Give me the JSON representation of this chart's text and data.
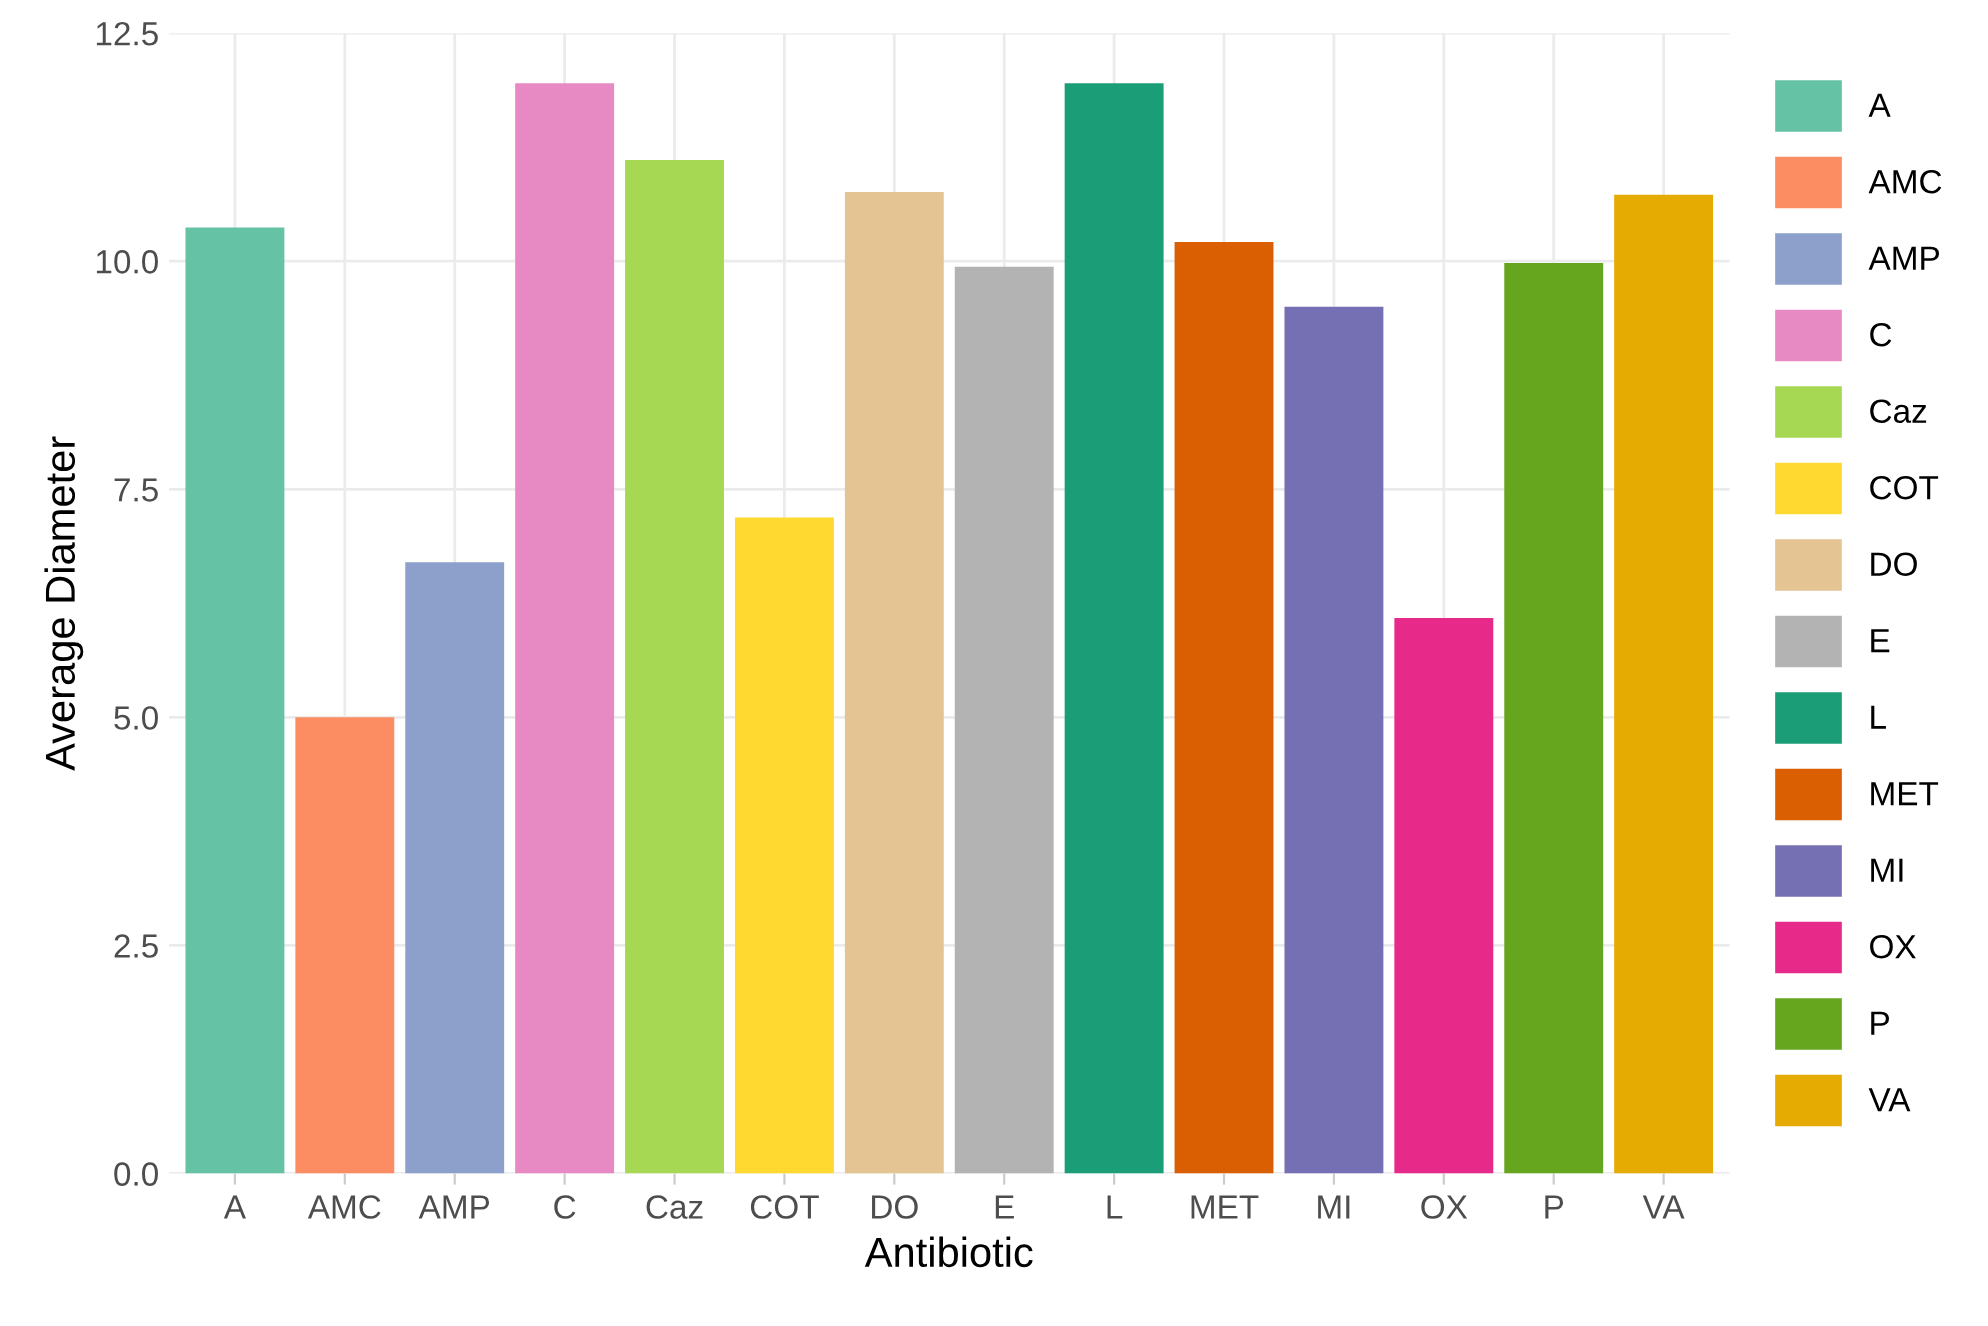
{
  "chart_data": {
    "type": "bar",
    "xlabel": "Antibiotic",
    "ylabel": "Average Diameter",
    "categories": [
      "A",
      "AMC",
      "AMP",
      "C",
      "Caz",
      "COT",
      "DO",
      "E",
      "L",
      "MET",
      "MI",
      "OX",
      "P",
      "VA"
    ],
    "series": [
      {
        "name": "A",
        "color": "#66c2a5",
        "values": [
          10.37,
          null,
          null,
          null,
          null,
          null,
          null,
          null,
          null,
          null,
          null,
          null,
          null,
          null
        ]
      },
      {
        "name": "AMC",
        "color": "#fc8d62",
        "values": [
          null,
          5.0,
          null,
          null,
          null,
          null,
          null,
          null,
          null,
          null,
          null,
          null,
          null,
          null
        ]
      },
      {
        "name": "AMP",
        "color": "#8da0cb",
        "values": [
          null,
          null,
          6.7,
          null,
          null,
          null,
          null,
          null,
          null,
          null,
          null,
          null,
          null,
          null
        ]
      },
      {
        "name": "C",
        "color": "#e78ac3",
        "values": [
          null,
          null,
          null,
          11.95,
          null,
          null,
          null,
          null,
          null,
          null,
          null,
          null,
          null,
          null
        ]
      },
      {
        "name": "Caz",
        "color": "#a6d854",
        "values": [
          null,
          null,
          null,
          null,
          11.11,
          null,
          null,
          null,
          null,
          null,
          null,
          null,
          null,
          null
        ]
      },
      {
        "name": "COT",
        "color": "#ffd92f",
        "values": [
          null,
          null,
          null,
          null,
          null,
          7.19,
          null,
          null,
          null,
          null,
          null,
          null,
          null,
          null
        ]
      },
      {
        "name": "DO",
        "color": "#e5c494",
        "values": [
          null,
          null,
          null,
          null,
          null,
          null,
          10.76,
          null,
          null,
          null,
          null,
          null,
          null,
          null
        ]
      },
      {
        "name": "E",
        "color": "#b3b3b3",
        "values": [
          null,
          null,
          null,
          null,
          null,
          null,
          null,
          9.94,
          null,
          null,
          null,
          null,
          null,
          null
        ]
      },
      {
        "name": "L",
        "color": "#1b9e77",
        "values": [
          null,
          null,
          null,
          null,
          null,
          null,
          null,
          null,
          11.95,
          null,
          null,
          null,
          null,
          null
        ]
      },
      {
        "name": "MET",
        "color": "#d95f02",
        "values": [
          null,
          null,
          null,
          null,
          null,
          null,
          null,
          null,
          null,
          10.21,
          null,
          null,
          null,
          null
        ]
      },
      {
        "name": "MI",
        "color": "#7570b3",
        "values": [
          null,
          null,
          null,
          null,
          null,
          null,
          null,
          null,
          null,
          null,
          9.5,
          null,
          null,
          null
        ]
      },
      {
        "name": "OX",
        "color": "#e7298a",
        "values": [
          null,
          null,
          null,
          null,
          null,
          null,
          null,
          null,
          null,
          null,
          null,
          6.09,
          null,
          null
        ]
      },
      {
        "name": "P",
        "color": "#66a61e",
        "values": [
          null,
          null,
          null,
          null,
          null,
          null,
          null,
          null,
          null,
          null,
          null,
          null,
          9.98,
          null
        ]
      },
      {
        "name": "VA",
        "color": "#e6ab02",
        "values": [
          null,
          null,
          null,
          null,
          null,
          null,
          null,
          null,
          null,
          null,
          null,
          null,
          null,
          10.73
        ]
      }
    ],
    "ylim": [
      0,
      12.5
    ],
    "yticks": [
      {
        "value": 0,
        "label": "0.0"
      },
      2.5,
      {
        "value": 5,
        "label": "5.0"
      },
      7.5,
      {
        "value": 10,
        "label": "10.0"
      },
      12.5
    ],
    "grid": true,
    "legend": "right"
  }
}
